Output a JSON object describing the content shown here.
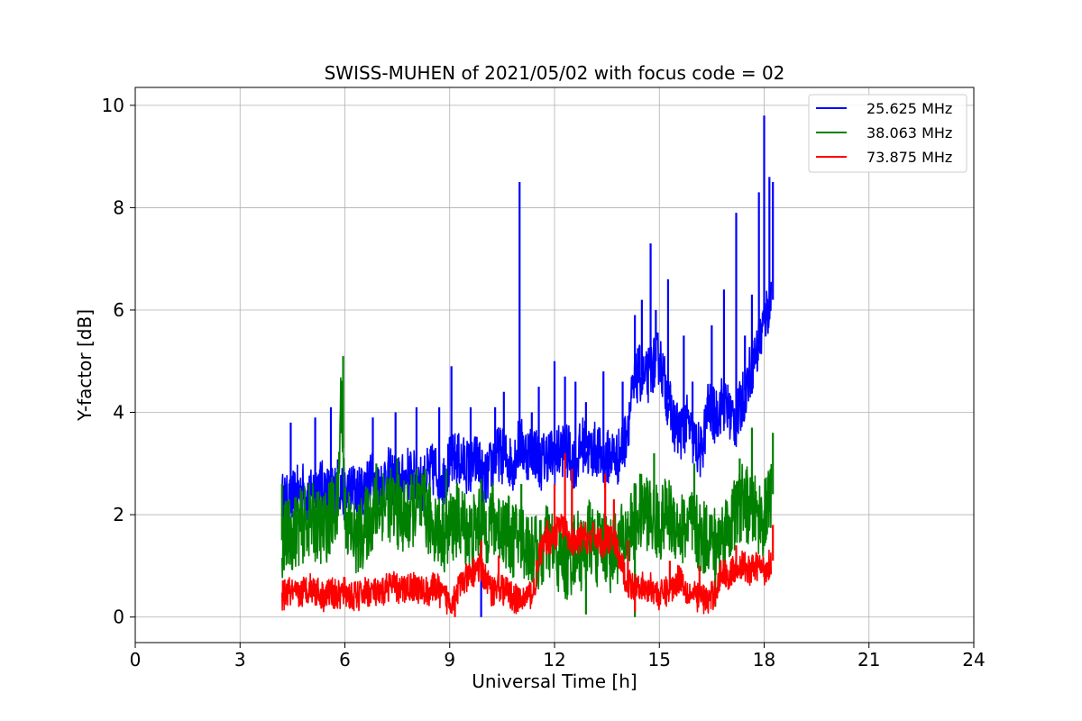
{
  "chart_data": {
    "type": "line",
    "title": "SWISS-MUHEN of 2021/05/02 with focus code = 02",
    "xlabel": "Universal Time [h]",
    "ylabel": "Y-factor [dB]",
    "xlim": [
      0,
      24
    ],
    "ylim": [
      -0.5,
      10.35
    ],
    "xticks": [
      "0",
      "3",
      "6",
      "9",
      "12",
      "15",
      "18",
      "21",
      "24"
    ],
    "xtick_values": [
      0,
      3,
      6,
      9,
      12,
      15,
      18,
      21,
      24
    ],
    "yticks": [
      "0",
      "2",
      "4",
      "6",
      "8",
      "10"
    ],
    "ytick_values": [
      0,
      2,
      4,
      6,
      8,
      10
    ],
    "grid": true,
    "legend_position": "top-right",
    "series": [
      {
        "name": "25.625 MHz",
        "color": "#0000ff",
        "x": [
          4.2,
          4.4,
          4.6,
          4.8,
          5.0,
          5.2,
          5.4,
          5.6,
          5.8,
          6.0,
          6.2,
          6.4,
          6.6,
          6.8,
          7.0,
          7.2,
          7.4,
          7.6,
          7.8,
          8.0,
          8.2,
          8.4,
          8.6,
          8.8,
          9.0,
          9.2,
          9.4,
          9.6,
          9.8,
          10.0,
          10.2,
          10.4,
          10.6,
          10.8,
          11.0,
          11.2,
          11.4,
          11.6,
          11.8,
          12.0,
          12.2,
          12.4,
          12.6,
          12.8,
          13.0,
          13.2,
          13.4,
          13.6,
          13.8,
          14.0,
          14.2,
          14.4,
          14.6,
          14.8,
          15.0,
          15.2,
          15.4,
          15.6,
          15.8,
          16.0,
          16.2,
          16.4,
          16.6,
          16.8,
          17.0,
          17.2,
          17.4,
          17.6,
          17.8,
          18.0,
          18.2
        ],
        "y": [
          2.3,
          2.2,
          2.4,
          2.5,
          2.3,
          2.6,
          2.5,
          2.4,
          2.6,
          2.4,
          2.5,
          2.4,
          2.6,
          2.7,
          2.5,
          2.8,
          2.7,
          2.6,
          2.8,
          2.7,
          2.6,
          2.8,
          2.9,
          2.7,
          3.0,
          3.1,
          3.0,
          2.9,
          3.1,
          2.6,
          3.0,
          3.2,
          3.1,
          3.0,
          3.4,
          3.2,
          3.3,
          3.0,
          3.2,
          3.1,
          3.3,
          3.2,
          3.0,
          3.4,
          3.2,
          3.3,
          3.0,
          3.2,
          3.1,
          3.4,
          4.2,
          4.8,
          4.6,
          4.9,
          5.1,
          4.4,
          3.8,
          3.6,
          3.8,
          3.4,
          3.2,
          4.1,
          3.9,
          4.2,
          4.0,
          3.8,
          4.3,
          4.8,
          5.2,
          5.8,
          6.2
        ],
        "peaks": [
          [
            4.45,
            3.8
          ],
          [
            5.15,
            3.9
          ],
          [
            5.6,
            4.1
          ],
          [
            6.8,
            3.9
          ],
          [
            7.45,
            4.0
          ],
          [
            8.05,
            4.1
          ],
          [
            8.7,
            4.1
          ],
          [
            9.05,
            4.9
          ],
          [
            9.6,
            4.1
          ],
          [
            10.3,
            4.1
          ],
          [
            10.55,
            4.4
          ],
          [
            11.0,
            8.5
          ],
          [
            11.35,
            4.0
          ],
          [
            11.55,
            4.5
          ],
          [
            12.0,
            5.0
          ],
          [
            12.3,
            4.7
          ],
          [
            12.6,
            4.6
          ],
          [
            12.9,
            4.2
          ],
          [
            13.4,
            4.8
          ],
          [
            13.95,
            4.6
          ],
          [
            14.3,
            5.9
          ],
          [
            14.5,
            6.2
          ],
          [
            14.75,
            7.3
          ],
          [
            14.9,
            6.0
          ],
          [
            15.25,
            6.6
          ],
          [
            15.7,
            5.5
          ],
          [
            15.95,
            4.6
          ],
          [
            16.5,
            5.7
          ],
          [
            16.85,
            6.4
          ],
          [
            17.2,
            7.9
          ],
          [
            17.45,
            5.5
          ],
          [
            17.65,
            6.3
          ],
          [
            17.85,
            8.3
          ],
          [
            18.0,
            9.8
          ],
          [
            18.15,
            8.6
          ],
          [
            18.25,
            8.5
          ],
          [
            9.9,
            0.0
          ]
        ]
      },
      {
        "name": "38.063 MHz",
        "color": "#008000",
        "x": [
          4.2,
          4.4,
          4.6,
          4.8,
          5.0,
          5.2,
          5.4,
          5.6,
          5.8,
          5.9,
          6.0,
          6.2,
          6.4,
          6.6,
          6.8,
          7.0,
          7.2,
          7.4,
          7.6,
          7.8,
          8.0,
          8.2,
          8.4,
          8.6,
          8.8,
          9.0,
          9.2,
          9.4,
          9.6,
          9.8,
          10.0,
          10.2,
          10.4,
          10.6,
          10.8,
          11.0,
          11.2,
          11.4,
          11.6,
          11.8,
          12.0,
          12.2,
          12.4,
          12.6,
          12.8,
          13.0,
          13.2,
          13.4,
          13.6,
          13.8,
          14.0,
          14.2,
          14.4,
          14.6,
          14.8,
          15.0,
          15.2,
          15.4,
          15.6,
          15.8,
          16.0,
          16.2,
          16.4,
          16.6,
          16.8,
          17.0,
          17.2,
          17.4,
          17.6,
          17.8,
          18.0,
          18.2
        ],
        "y": [
          1.5,
          1.6,
          1.7,
          1.8,
          1.9,
          1.8,
          1.7,
          2.0,
          2.1,
          4.6,
          2.0,
          1.6,
          1.5,
          1.8,
          2.0,
          2.2,
          2.3,
          2.1,
          2.0,
          1.9,
          2.2,
          2.1,
          1.9,
          1.8,
          1.6,
          1.7,
          1.9,
          1.8,
          1.6,
          1.8,
          1.7,
          1.9,
          1.8,
          1.7,
          1.5,
          1.6,
          1.4,
          1.3,
          1.2,
          1.5,
          1.3,
          1.1,
          1.0,
          1.4,
          1.2,
          1.6,
          1.3,
          1.5,
          1.2,
          1.4,
          1.5,
          1.8,
          2.0,
          2.1,
          1.9,
          1.8,
          2.0,
          1.9,
          1.7,
          1.8,
          1.7,
          1.5,
          1.6,
          1.4,
          1.6,
          1.8,
          2.0,
          2.3,
          2.1,
          2.0,
          1.9,
          2.4
        ],
        "peaks": [
          [
            4.2,
            2.6
          ],
          [
            5.8,
            2.9
          ],
          [
            5.95,
            5.1
          ],
          [
            6.9,
            3.0
          ],
          [
            7.5,
            3.1
          ],
          [
            8.3,
            2.9
          ],
          [
            8.9,
            2.9
          ],
          [
            9.9,
            2.7
          ],
          [
            11.05,
            2.6
          ],
          [
            12.5,
            2.5
          ],
          [
            14.45,
            2.8
          ],
          [
            14.85,
            3.2
          ],
          [
            16.0,
            3.0
          ],
          [
            17.3,
            3.1
          ],
          [
            17.65,
            3.7
          ],
          [
            18.25,
            3.6
          ],
          [
            12.9,
            0.05
          ],
          [
            14.3,
            0.0
          ],
          [
            16.6,
            0.2
          ]
        ]
      },
      {
        "name": "73.875 MHz",
        "color": "#ff0000",
        "x": [
          4.2,
          4.4,
          4.6,
          4.8,
          5.0,
          5.2,
          5.4,
          5.6,
          5.8,
          6.0,
          6.2,
          6.4,
          6.6,
          6.8,
          7.0,
          7.2,
          7.4,
          7.6,
          7.8,
          8.0,
          8.2,
          8.4,
          8.6,
          8.8,
          9.0,
          9.2,
          9.4,
          9.6,
          9.8,
          10.0,
          10.2,
          10.4,
          10.6,
          10.8,
          11.0,
          11.2,
          11.4,
          11.6,
          11.8,
          12.0,
          12.2,
          12.4,
          12.6,
          12.8,
          13.0,
          13.2,
          13.4,
          13.6,
          13.8,
          14.0,
          14.2,
          14.4,
          14.6,
          14.8,
          15.0,
          15.2,
          15.4,
          15.6,
          15.8,
          16.0,
          16.2,
          16.4,
          16.6,
          16.8,
          17.0,
          17.2,
          17.4,
          17.6,
          17.8,
          18.0,
          18.2
        ],
        "y": [
          0.4,
          0.5,
          0.4,
          0.5,
          0.6,
          0.5,
          0.4,
          0.5,
          0.4,
          0.5,
          0.4,
          0.4,
          0.5,
          0.5,
          0.4,
          0.6,
          0.6,
          0.5,
          0.6,
          0.6,
          0.5,
          0.5,
          0.6,
          0.4,
          0.3,
          0.5,
          0.7,
          0.8,
          1.0,
          0.8,
          0.5,
          0.6,
          0.5,
          0.4,
          0.3,
          0.4,
          0.5,
          1.3,
          1.5,
          1.6,
          1.8,
          1.5,
          1.4,
          1.6,
          1.5,
          1.6,
          1.4,
          1.6,
          1.3,
          0.8,
          0.6,
          0.7,
          0.5,
          0.6,
          0.4,
          0.5,
          0.6,
          0.8,
          0.5,
          0.4,
          0.4,
          0.3,
          0.5,
          0.9,
          0.8,
          1.0,
          1.0,
          0.9,
          1.0,
          0.9,
          1.1
        ],
        "peaks": [
          [
            9.9,
            1.5
          ],
          [
            10.4,
            1.2
          ],
          [
            11.8,
            1.9
          ],
          [
            12.0,
            2.6
          ],
          [
            12.3,
            3.2
          ],
          [
            12.5,
            2.9
          ],
          [
            13.45,
            2.8
          ],
          [
            13.7,
            2.3
          ],
          [
            14.1,
            1.5
          ],
          [
            15.3,
            1.1
          ],
          [
            16.15,
            1.0
          ],
          [
            17.2,
            1.4
          ],
          [
            18.25,
            1.8
          ],
          [
            9.15,
            0.0
          ],
          [
            10.95,
            0.1
          ],
          [
            14.3,
            0.1
          ]
        ]
      }
    ]
  }
}
